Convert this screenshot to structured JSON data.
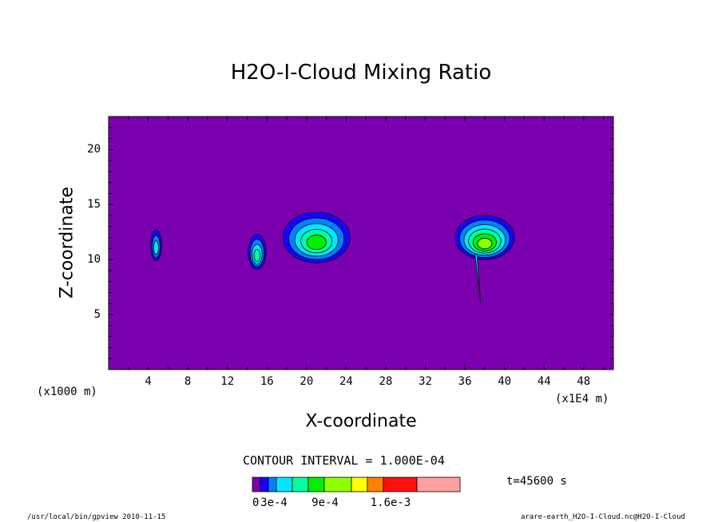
{
  "chart_data": {
    "type": "heatmap",
    "title": "H2O-I-Cloud Mixing Ratio",
    "xlabel": "X-coordinate",
    "ylabel": "Z-coordinate",
    "x_unit": "(x1E4 m)",
    "z_unit": "(x1000 m)",
    "xlim": [
      0,
      51
    ],
    "ylim": [
      0,
      23
    ],
    "x_ticks": [
      "4",
      "8",
      "12",
      "16",
      "20",
      "24",
      "28",
      "32",
      "36",
      "40",
      "44",
      "48"
    ],
    "y_ticks": [
      "5",
      "10",
      "15",
      "20"
    ],
    "contour_interval_label": "CONTOUR INTERVAL = 1.000E-04",
    "time_label": "t=45600 s",
    "colorbar": {
      "colors": [
        "#7a00b0",
        "#1a00ff",
        "#0080ff",
        "#00e8ff",
        "#00ffa0",
        "#00f000",
        "#90ff00",
        "#ffff00",
        "#ff8000",
        "#ff1010",
        "#ffa0a0"
      ],
      "tick_labels": [
        "0",
        "3e-4",
        "9e-4",
        "1.6e-3"
      ]
    },
    "background_color": "#7a00b0",
    "clouds": [
      {
        "x": 4.8,
        "z": 11.3,
        "max_level": 3
      },
      {
        "x": 15.0,
        "z": 10.7,
        "max_level": 4
      },
      {
        "x": 21.0,
        "z": 12.0,
        "max_level": 5
      },
      {
        "x": 38.0,
        "z": 12.0,
        "max_level": 6
      }
    ]
  },
  "footer": {
    "left": "/usr/local/bin/gpview  2010-11-15",
    "right": "arare-earth_H2O-I-Cloud.nc@H2O-I-Cloud"
  }
}
